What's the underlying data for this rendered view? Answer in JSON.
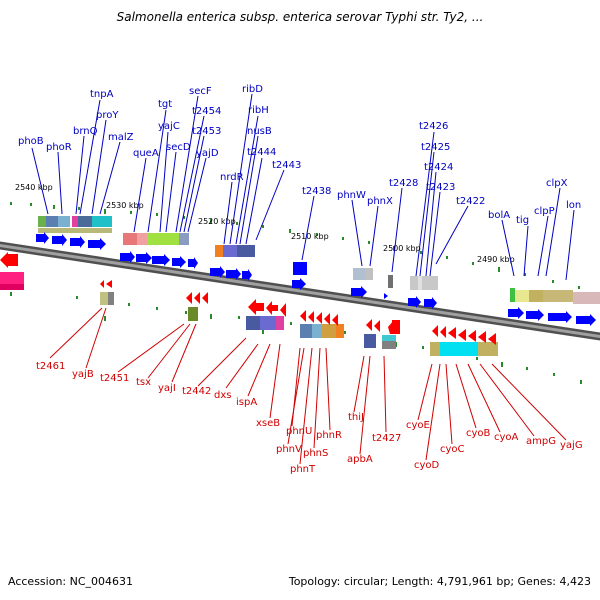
{
  "title": "Salmonella enterica subsp. enterica serovar Typhi str. Ty2, ...",
  "footer": {
    "accession": "Accession: NC_004631",
    "summary": "Topology: circular; Length: 4,791,961 bp; Genes: 4,423"
  },
  "colors": {
    "forward_gene": "#0000ff",
    "reverse_gene": "#ff0000",
    "backbone": "#606060",
    "tick": "#2a8a2a"
  },
  "kbp_labels": [
    "2540 kbp",
    "2530 kbp",
    "2520 kbp",
    "2510 kbp",
    "2500 kbp",
    "2490 kbp"
  ],
  "forward_genes": [
    "phoB",
    "phoR",
    "brnQ",
    "tnpA",
    "proY",
    "malZ",
    "queA",
    "tgt",
    "yajC",
    "secD",
    "secF",
    "t2454",
    "t2453",
    "yajD",
    "nrdR",
    "ribD",
    "ribH",
    "nusB",
    "t2444",
    "t2443",
    "t2438",
    "phnW",
    "phnX",
    "t2428",
    "t2426",
    "t2425",
    "t2424",
    "t2423",
    "t2422",
    "bolA",
    "tig",
    "clpP",
    "clpX",
    "lon"
  ],
  "reverse_genes": [
    "t2461",
    "yajB",
    "t2451",
    "tsx",
    "yajI",
    "t2442",
    "dxs",
    "ispA",
    "xseB",
    "phnU",
    "phnV",
    "phnT",
    "phnS",
    "phnR",
    "thiJ",
    "apbA",
    "t2427",
    "cyoE",
    "cyoD",
    "cyoC",
    "cyoB",
    "cyoA",
    "ampG",
    "yajG"
  ]
}
